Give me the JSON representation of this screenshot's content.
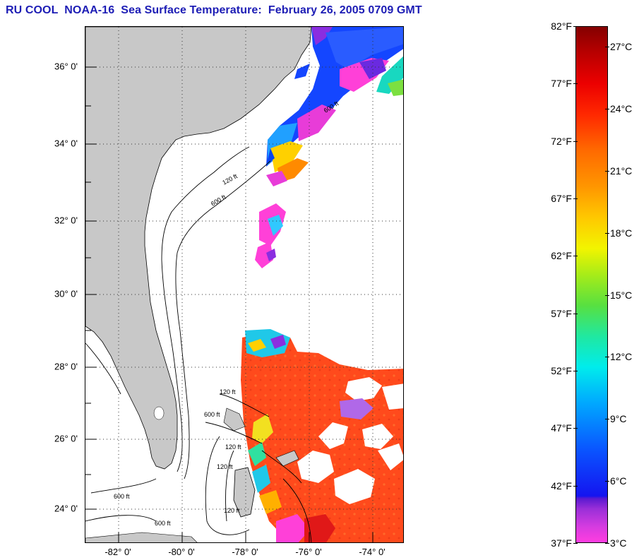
{
  "title": "RU COOL  NOAA-16  Sea Surface Temperature:  February 26, 2005 0709 GMT",
  "map": {
    "latitude_labels": [
      "36° 0'",
      "34° 0'",
      "32° 0'",
      "30° 0'",
      "28° 0'",
      "26° 0'",
      "24° 0'"
    ],
    "longitude_labels": [
      "-82° 0'",
      "-80° 0'",
      "-78° 0'",
      "-76° 0'",
      "-74° 0'"
    ],
    "contour_labels": [
      "120 ft",
      "600 ft"
    ],
    "colors": {
      "land": "#c8c8c8",
      "no_data": "#ffffff",
      "warm_water": "#ff4a1c",
      "cold_water": "#1a4cff",
      "grid": "#333333"
    }
  },
  "colorbar": {
    "range_f": [
      37,
      82
    ],
    "range_c": [
      3,
      28
    ],
    "fahrenheit_labels": [
      "82°F",
      "77°F",
      "72°F",
      "67°F",
      "62°F",
      "57°F",
      "52°F",
      "47°F",
      "42°F",
      "37°F"
    ],
    "celsius_labels": [
      "27°C",
      "24°C",
      "21°C",
      "18°C",
      "15°C",
      "12°C",
      "9°C",
      "6°C",
      "3°C"
    ]
  }
}
